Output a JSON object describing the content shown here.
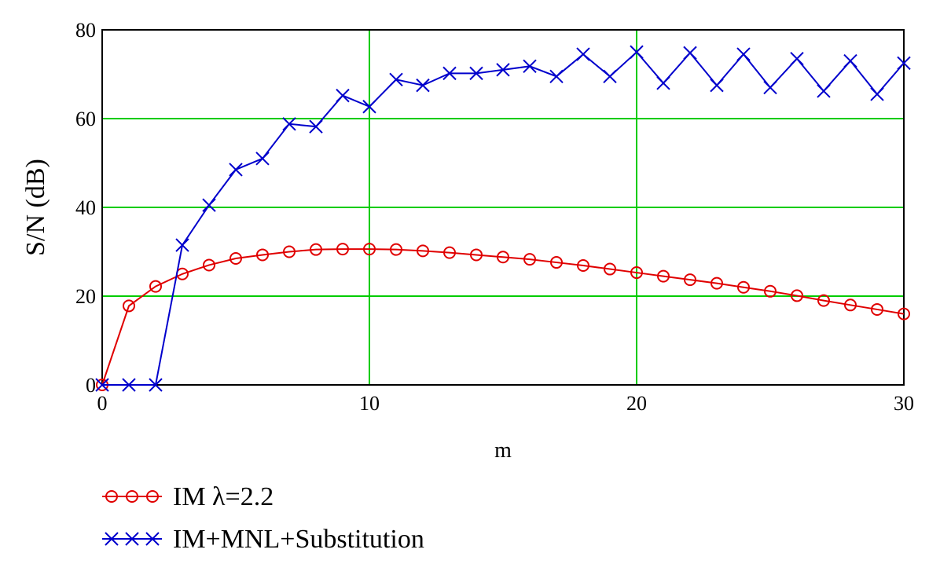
{
  "chart_data": {
    "type": "line",
    "xlabel": "m",
    "ylabel": "S/N (dB)",
    "xlim": [
      0,
      30
    ],
    "ylim": [
      0,
      80
    ],
    "x_ticks": [
      0,
      10,
      20,
      30
    ],
    "y_ticks": [
      0,
      20,
      40,
      60,
      80
    ],
    "x_tick_labels": [
      "0",
      "10",
      "20",
      "30"
    ],
    "y_tick_labels": [
      "0",
      "20",
      "40",
      "60",
      "80"
    ],
    "grid": true,
    "grid_color": "#00cc00",
    "legend_position": "bottom-left",
    "x": [
      0,
      1,
      2,
      3,
      4,
      5,
      6,
      7,
      8,
      9,
      10,
      11,
      12,
      13,
      14,
      15,
      16,
      17,
      18,
      19,
      20,
      21,
      22,
      23,
      24,
      25,
      26,
      27,
      28,
      29,
      30
    ],
    "series": [
      {
        "name": "IM λ=2.2",
        "color": "#e00000",
        "marker": "circle",
        "values": [
          0,
          17.8,
          22.2,
          25,
          27,
          28.5,
          29.3,
          30,
          30.5,
          30.6,
          30.6,
          30.5,
          30.2,
          29.8,
          29.3,
          28.8,
          28.3,
          27.6,
          26.9,
          26.1,
          25.3,
          24.5,
          23.7,
          22.9,
          22,
          21.1,
          20.1,
          19,
          18,
          17,
          16
        ]
      },
      {
        "name": "IM+MNL+Substitution",
        "color": "#0000cc",
        "marker": "x",
        "values": [
          0,
          0,
          0,
          31.5,
          40.5,
          48.5,
          51,
          58.8,
          58.2,
          65.2,
          62.7,
          68.8,
          67.5,
          70.2,
          70.2,
          71,
          71.8,
          69.5,
          74.5,
          69.5,
          75,
          68,
          74.8,
          67.5,
          74.5,
          67,
          73.5,
          66.2,
          73,
          65.5,
          72.5
        ]
      }
    ]
  }
}
